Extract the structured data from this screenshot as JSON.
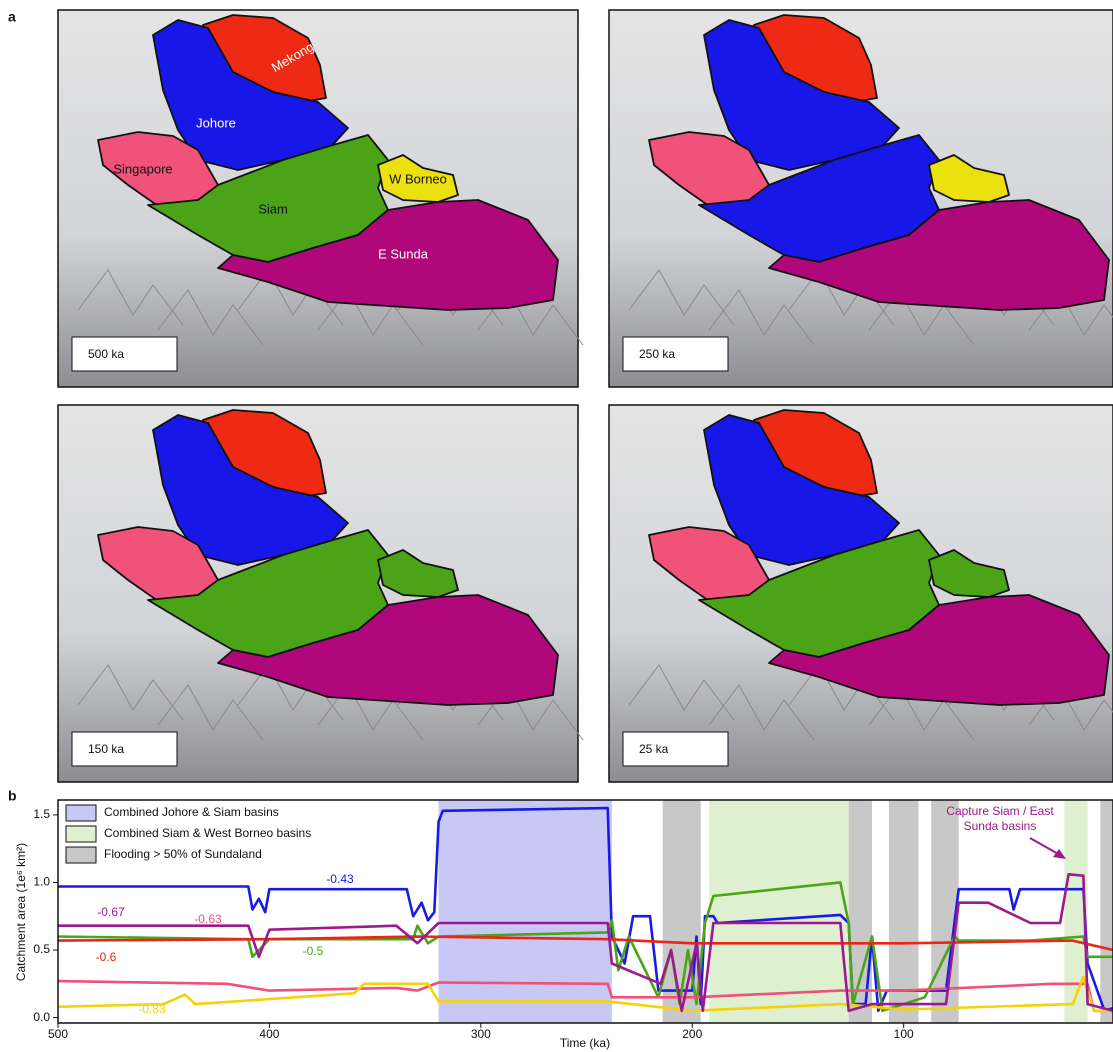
{
  "panel_a": {
    "letter": "a",
    "maps": [
      {
        "time": "500 ka",
        "labels": [
          "Mekong",
          "Johore",
          "Singapore",
          "Siam",
          "W Borneo",
          "E Sunda"
        ]
      },
      {
        "time": "250 ka"
      },
      {
        "time": "150 ka"
      },
      {
        "time": "25 ka"
      }
    ]
  },
  "panel_b": {
    "letter": "b"
  },
  "chart_data": {
    "type": "line",
    "xlabel": "Time (ka)",
    "ylabel": "Catchment area (1e⁶ km²)",
    "xlim": [
      500,
      1
    ],
    "ylim": [
      -0.04,
      1.61
    ],
    "xticks": [
      500,
      400,
      300,
      200,
      100
    ],
    "yticks": [
      {
        "value": 0,
        "label": "0.0"
      },
      0.5,
      {
        "value": 1,
        "label": "1.0"
      },
      1.5
    ],
    "legend": [
      {
        "name": "Combined Johore & Siam basins",
        "color": "#c8c8f5"
      },
      {
        "name": "Combined Siam & West Borneo basins",
        "color": "#def0d0"
      },
      {
        "name": "Flooding > 50% of  Sundaland",
        "color": "#c8c8c8"
      }
    ],
    "regions": [
      {
        "start": 320,
        "end": 238,
        "kind": 0
      },
      {
        "start": 214,
        "end": 196,
        "kind": 2
      },
      {
        "start": 192,
        "end": 126,
        "kind": 1
      },
      {
        "start": 126,
        "end": 115,
        "kind": 2
      },
      {
        "start": 107,
        "end": 93,
        "kind": 2
      },
      {
        "start": 87,
        "end": 74,
        "kind": 2
      },
      {
        "start": 24,
        "end": 13,
        "kind": 1
      },
      {
        "start": 7,
        "end": 1,
        "kind": 2
      }
    ],
    "series": [
      {
        "color": "#1a1ae6",
        "label": "-0.43",
        "x": [
          500,
          410,
          408,
          405,
          402,
          400,
          335,
          332,
          328,
          325,
          322,
          320,
          318,
          240,
          238,
          232,
          228,
          220,
          216,
          200,
          198,
          196,
          194,
          190,
          188,
          130,
          126,
          124,
          118,
          115,
          112,
          108,
          80,
          76,
          74,
          50,
          48,
          45,
          15,
          13,
          5,
          1
        ],
        "values": [
          0.97,
          0.97,
          0.8,
          0.88,
          0.78,
          0.95,
          0.95,
          0.75,
          0.85,
          0.72,
          0.78,
          1.45,
          1.53,
          1.55,
          0.6,
          0.4,
          0.75,
          0.75,
          0.2,
          0.2,
          0.6,
          0.1,
          0.75,
          0.75,
          0.7,
          0.76,
          0.7,
          0.1,
          0.1,
          0.6,
          0.05,
          0.2,
          0.2,
          0.7,
          0.95,
          0.95,
          0.8,
          0.95,
          0.95,
          0.4,
          0.05,
          0.07
        ]
      },
      {
        "color": "#4aa518",
        "label": "-0.5",
        "x": [
          500,
          410,
          408,
          400,
          332,
          330,
          325,
          320,
          240,
          238,
          235,
          230,
          216,
          210,
          206,
          202,
          198,
          194,
          190,
          130,
          126,
          124,
          115,
          110,
          90,
          76,
          74,
          40,
          15,
          13,
          1
        ],
        "values": [
          0.6,
          0.58,
          0.45,
          0.58,
          0.58,
          0.68,
          0.55,
          0.6,
          0.63,
          0.72,
          0.35,
          0.6,
          0.15,
          0.5,
          0.1,
          0.5,
          0.1,
          0.7,
          0.9,
          1.0,
          0.7,
          0.1,
          0.6,
          0.05,
          0.15,
          0.6,
          0.57,
          0.57,
          0.6,
          0.45,
          0.45
        ]
      },
      {
        "color": "#e8261a",
        "label": "-0.6",
        "x": [
          500,
          400,
          330,
          240,
          200,
          100,
          20,
          1
        ],
        "values": [
          0.57,
          0.58,
          0.6,
          0.58,
          0.55,
          0.55,
          0.57,
          0.5
        ]
      },
      {
        "color": "#f0507a",
        "label": "-0.63",
        "x": [
          500,
          420,
          400,
          340,
          330,
          320,
          240,
          238,
          200,
          130,
          100,
          30,
          13,
          10,
          1
        ],
        "values": [
          0.27,
          0.25,
          0.2,
          0.22,
          0.2,
          0.26,
          0.25,
          0.15,
          0.15,
          0.2,
          0.2,
          0.25,
          0.25,
          0.05,
          0.05
        ]
      },
      {
        "color": "#f5d20a",
        "label": "-0.83",
        "x": [
          500,
          450,
          440,
          435,
          360,
          355,
          325,
          320,
          240,
          200,
          130,
          100,
          20,
          15,
          10,
          1
        ],
        "values": [
          0.08,
          0.1,
          0.17,
          0.1,
          0.18,
          0.25,
          0.25,
          0.12,
          0.12,
          0.05,
          0.1,
          0.06,
          0.1,
          0.3,
          0.05,
          0.05
        ]
      },
      {
        "color": "#9b1a8c",
        "label": "-0.67",
        "x": [
          500,
          410,
          405,
          400,
          340,
          330,
          320,
          240,
          238,
          215,
          210,
          205,
          198,
          195,
          190,
          130,
          126,
          115,
          80,
          76,
          74,
          60,
          40,
          26,
          22,
          15,
          13,
          1
        ],
        "values": [
          0.68,
          0.68,
          0.45,
          0.65,
          0.68,
          0.55,
          0.7,
          0.7,
          0.4,
          0.25,
          0.5,
          0.05,
          0.55,
          0.05,
          0.7,
          0.7,
          0.05,
          0.1,
          0.1,
          0.6,
          0.85,
          0.85,
          0.7,
          0.7,
          1.06,
          1.05,
          0.1,
          0.05
        ]
      }
    ],
    "annotation": "Capture Siam / East\nSunda basins"
  }
}
